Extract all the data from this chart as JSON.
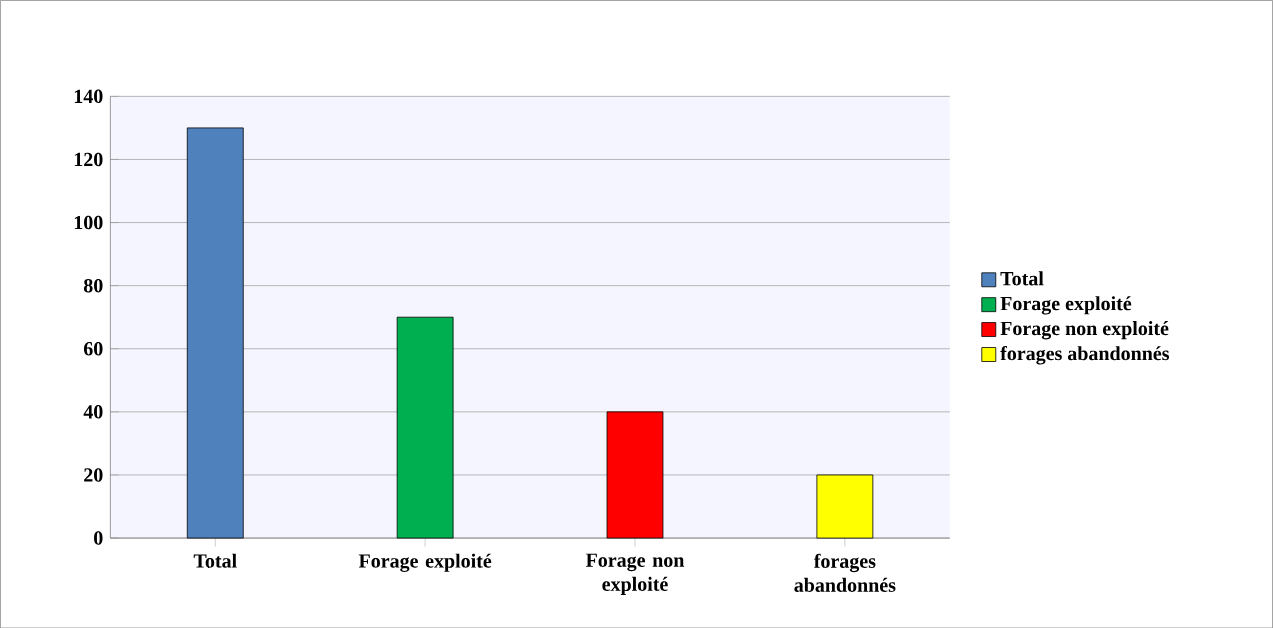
{
  "chart_data": {
    "type": "bar",
    "categories": [
      "Total",
      "Forage exploité",
      "Forage non exploité",
      "forages abandonnés"
    ],
    "series": [
      {
        "name": "Total",
        "color": "#4f81bd",
        "values": [
          130,
          null,
          null,
          null
        ]
      },
      {
        "name": "Forage exploité",
        "color": "#00b050",
        "values": [
          null,
          70,
          null,
          null
        ]
      },
      {
        "name": "Forage non exploité",
        "color": "#ff0000",
        "values": [
          null,
          null,
          40,
          null
        ]
      },
      {
        "name": "forages abandonnés",
        "color": "#ffff00",
        "values": [
          null,
          null,
          null,
          20
        ]
      }
    ],
    "ylim": [
      0,
      140
    ],
    "yticks": [
      0,
      20,
      40,
      60,
      80,
      100,
      120,
      140
    ],
    "grid": "y",
    "legend": "right"
  }
}
